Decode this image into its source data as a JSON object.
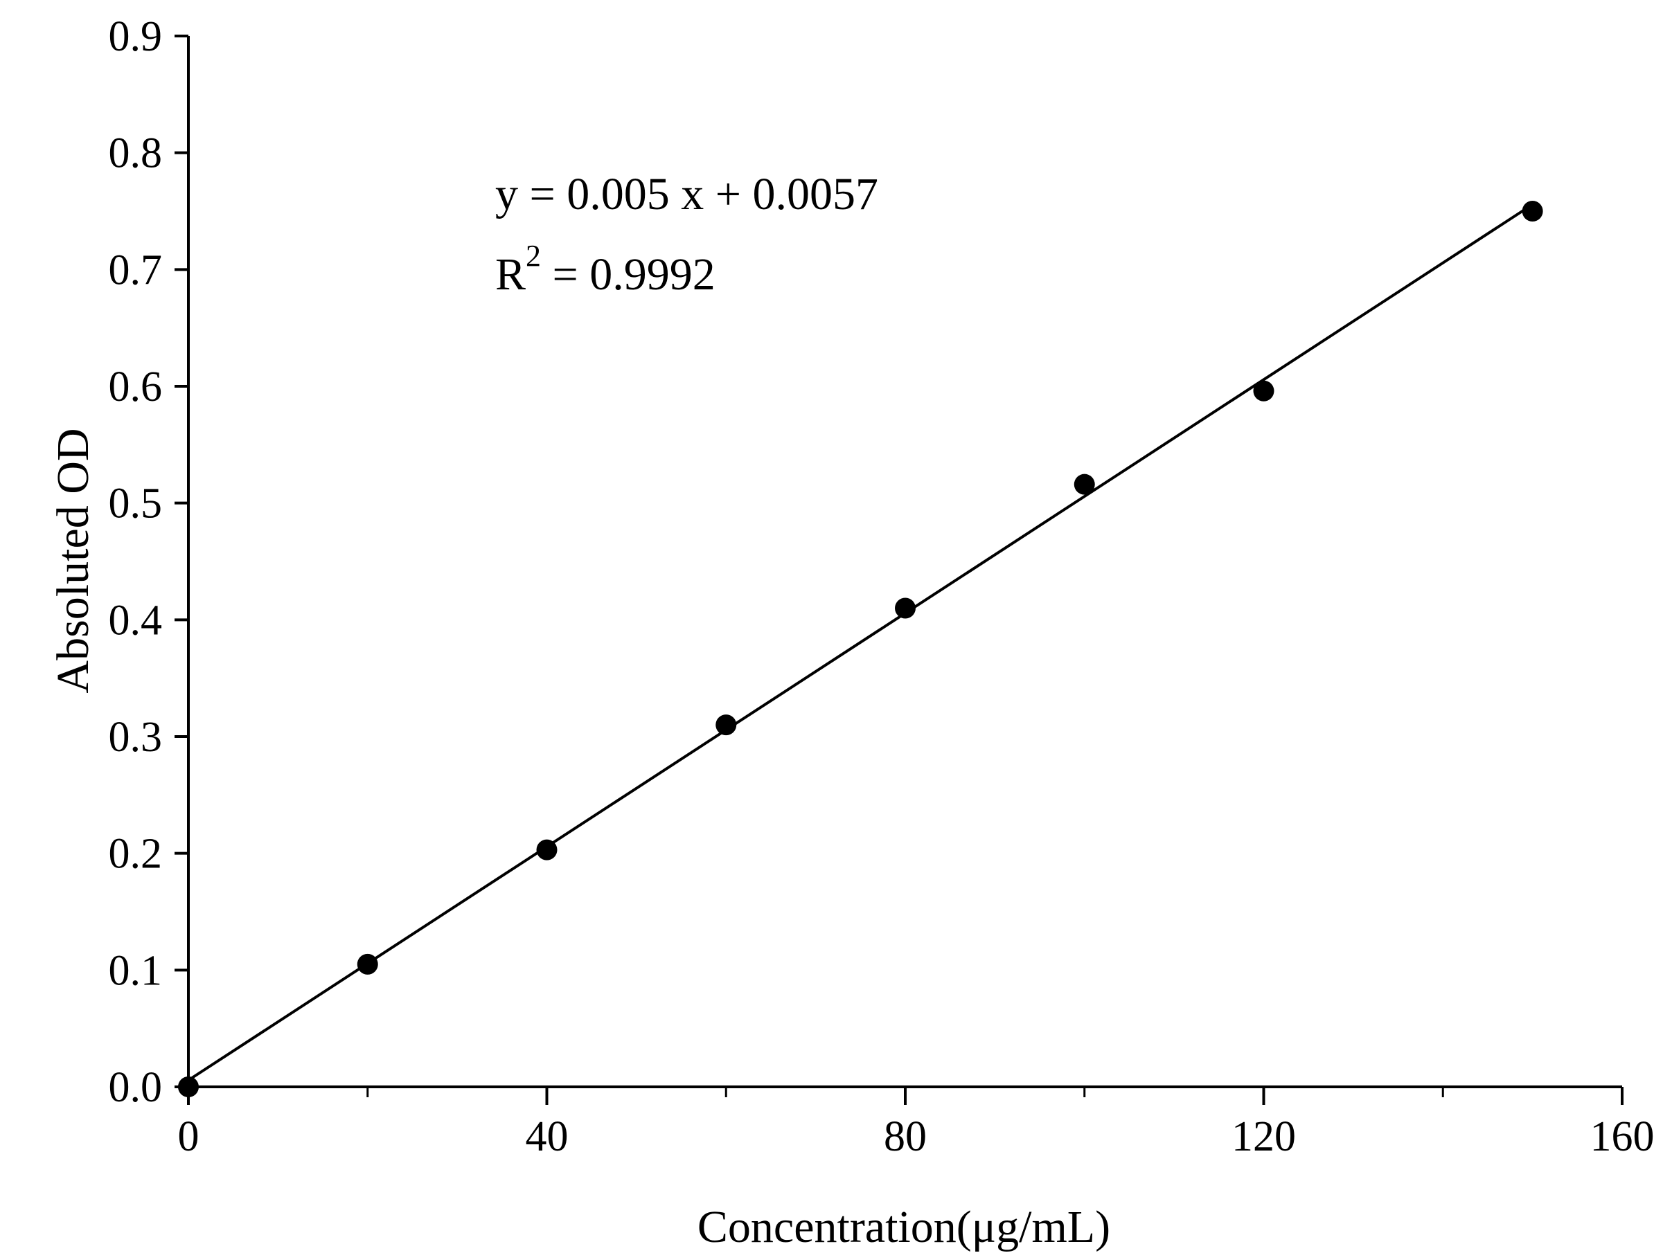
{
  "chart_data": {
    "type": "scatter",
    "xlabel": "Concentration(μg/mL)",
    "ylabel": "Absoluted OD",
    "xlim": [
      0,
      160
    ],
    "ylim": [
      0,
      0.9
    ],
    "xticks": [
      "0",
      "40",
      "80",
      "120",
      "160"
    ],
    "yticks": [
      "0.0",
      "0.1",
      "0.2",
      "0.3",
      "0.4",
      "0.5",
      "0.6",
      "0.7",
      "0.8",
      "0.9"
    ],
    "grid": false,
    "points": [
      {
        "x": 0,
        "y": 0.0
      },
      {
        "x": 20,
        "y": 0.105
      },
      {
        "x": 40,
        "y": 0.203
      },
      {
        "x": 60,
        "y": 0.31
      },
      {
        "x": 80,
        "y": 0.41
      },
      {
        "x": 100,
        "y": 0.516
      },
      {
        "x": 120,
        "y": 0.596
      },
      {
        "x": 150,
        "y": 0.75
      }
    ],
    "fit": {
      "slope": 0.005,
      "intercept": 0.0057,
      "x_range": [
        0,
        150
      ]
    },
    "annotation": {
      "equation": "y = 0.005 x + 0.0057",
      "r2_base": "R",
      "r2_sup": "2",
      "r2_value": " = 0.9992"
    }
  }
}
